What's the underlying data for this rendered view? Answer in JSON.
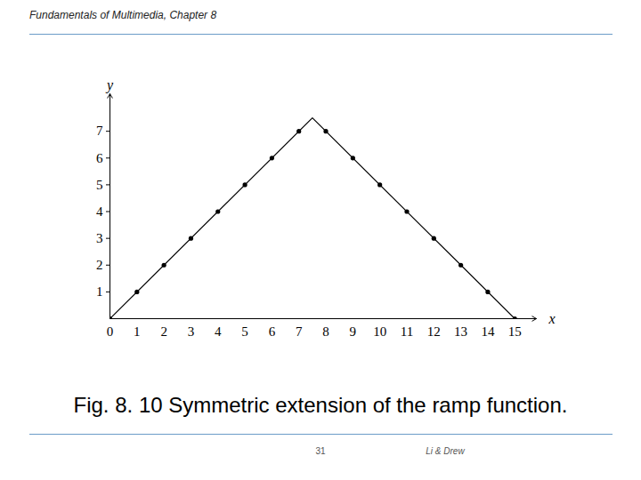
{
  "header": "Fundamentals of Multimedia, Chapter 8",
  "caption": "Fig. 8. 10 Symmetric extension of the ramp function.",
  "page_number": 31,
  "footer": "Li & Drew",
  "chart_data": {
    "type": "line",
    "x_label": "x",
    "y_label": "y",
    "series": [
      {
        "type": "line",
        "color": "#000000",
        "line_style": "solid",
        "x": [
          0,
          7.5,
          15
        ],
        "values": [
          0,
          7.5,
          0
        ]
      },
      {
        "type": "scatter",
        "color": "#000000",
        "marker": "circle",
        "x": [
          0,
          1,
          2,
          3,
          4,
          5,
          6,
          7,
          8,
          9,
          10,
          11,
          12,
          13,
          14,
          15
        ],
        "values": [
          0,
          1,
          2,
          3,
          4,
          5,
          6,
          7,
          7,
          6,
          5,
          4,
          3,
          2,
          1,
          0
        ]
      }
    ],
    "xlim": [
      0,
      15.8
    ],
    "ylim": [
      0,
      8.4
    ],
    "xticks": [
      0,
      1,
      2,
      3,
      4,
      5,
      6,
      7,
      8,
      9,
      10,
      11,
      12,
      13,
      14,
      15
    ],
    "yticks": [
      1,
      2,
      3,
      4,
      5,
      6,
      7
    ],
    "grid": false
  }
}
